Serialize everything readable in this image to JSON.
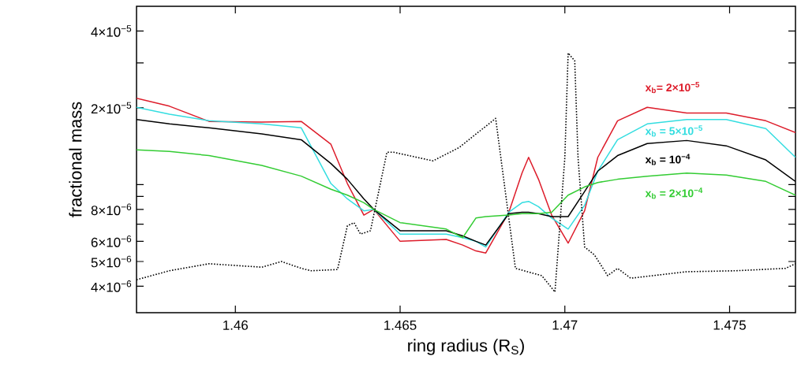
{
  "chart_data": {
    "type": "line",
    "xlabel": "ring radius (R$_{S}$)",
    "ylabel": "fractional mass",
    "log": true,
    "xlim": [
      1.457,
      1.477
    ],
    "ylim": [
      3.15e-06,
      5e-05
    ],
    "xticks": [
      1.46,
      1.465,
      1.47,
      1.475
    ],
    "yticks": [
      {
        "value": 4e-06,
        "label": "4×10$^{−6}$"
      },
      {
        "value": 5e-06,
        "label": "5×10$^{−6}$"
      },
      {
        "value": 6e-06,
        "label": "6×10$^{−6}$"
      },
      {
        "value": 7e-06,
        "label": null
      },
      {
        "value": 8e-06,
        "label": "8×10$^{−6}$"
      },
      {
        "value": 9e-06,
        "label": null
      },
      {
        "value": 1e-05,
        "label": null
      },
      {
        "value": 2e-05,
        "label": "2×10$^{−5}$"
      },
      {
        "value": 3e-05,
        "label": null
      },
      {
        "value": 4e-05,
        "label": "4×10$^{−5}$"
      }
    ],
    "x": [
      1.457,
      1.458,
      1.4592,
      1.4608,
      1.462,
      1.4629,
      1.4634,
      1.4639,
      1.4642,
      1.465,
      1.4664,
      1.4669,
      1.4673,
      1.4676,
      1.4683,
      1.4687,
      1.4689,
      1.4692,
      1.4696,
      1.4701,
      1.4706,
      1.471,
      1.4716,
      1.4725,
      1.4737,
      1.4749,
      1.4761,
      1.477
    ],
    "series": [
      {
        "name": "x$_{b}$= 2×10$^{−5}$",
        "color": "#dd1c2a",
        "values": [
          2.18e-05,
          2.03e-05,
          1.77e-05,
          1.76e-05,
          1.77e-05,
          1.44e-05,
          1.01e-05,
          7.6e-06,
          8e-06,
          6e-06,
          6.1e-06,
          5.8e-06,
          5.5e-06,
          5.4e-06,
          7.8e-06,
          1.11e-05,
          1.28e-05,
          1.05e-05,
          7.6e-06,
          5.9e-06,
          7.9e-06,
          1.28e-05,
          1.78e-05,
          2.01e-05,
          1.91e-05,
          1.91e-05,
          1.78e-05,
          1.6e-05
        ]
      },
      {
        "name": "x$_{b}$ = 5×10$^{−5}$",
        "color": "#33dde0",
        "values": [
          2.01e-05,
          1.89e-05,
          1.78e-05,
          1.73e-05,
          1.67e-05,
          1.01e-05,
          8.8e-06,
          7.9e-06,
          8e-06,
          6.4e-06,
          6.4e-06,
          6.2e-06,
          6e-06,
          5.7e-06,
          7.8e-06,
          8.5e-06,
          8.6e-06,
          8.2e-06,
          7.4e-06,
          6.7e-06,
          8.3e-06,
          1.13e-05,
          1.5e-05,
          1.73e-05,
          1.8e-05,
          1.8e-05,
          1.66e-05,
          1.28e-05
        ]
      },
      {
        "name": "x$_{b}$ = 10$^{−4}$",
        "color": "#000000",
        "values": [
          1.8e-05,
          1.73e-05,
          1.67e-05,
          1.58e-05,
          1.5e-05,
          1.21e-05,
          1.05e-05,
          8.8e-06,
          8e-06,
          6.6e-06,
          6.6e-06,
          6.3e-06,
          6e-06,
          5.8e-06,
          7.7e-06,
          7.8e-06,
          7.8e-06,
          7.7e-06,
          7.5e-06,
          7.5e-06,
          9.4e-06,
          1.13e-05,
          1.3e-05,
          1.45e-05,
          1.49e-05,
          1.42e-05,
          1.25e-05,
          1.03e-05
        ]
      },
      {
        "name": "x$_{b}$ = 2×10$^{−4}$",
        "color": "#33cc33",
        "values": [
          1.37e-05,
          1.35e-05,
          1.3e-05,
          1.19e-05,
          1.08e-05,
          9.6e-06,
          9.1e-06,
          8.5e-06,
          8e-06,
          7.1e-06,
          6.7e-06,
          6.2e-06,
          7.4e-06,
          7.5e-06,
          7.6e-06,
          7.7e-06,
          7.7e-06,
          7.7e-06,
          7.8e-06,
          9.1e-06,
          9.8e-06,
          1.02e-05,
          1.05e-05,
          1.08e-05,
          1.11e-05,
          1.09e-05,
          1.03e-05,
          9.1e-06
        ]
      },
      {
        "color": "#000000",
        "line_style": "dotted",
        "x": [
          1.457,
          1.458,
          1.4592,
          1.4608,
          1.4614,
          1.462,
          1.4623,
          1.4631,
          1.4634,
          1.4636,
          1.4638,
          1.4641,
          1.4646,
          1.4648,
          1.466,
          1.4668,
          1.4679,
          1.4685,
          1.4693,
          1.4697,
          1.47,
          1.4701,
          1.4703,
          1.4704,
          1.4706,
          1.4709,
          1.4713,
          1.4716,
          1.472,
          1.4737,
          1.4752,
          1.4767,
          1.477
        ],
        "values": [
          4.24e-06,
          4.6e-06,
          4.9e-06,
          4.75e-06,
          5e-06,
          4.7e-06,
          4.6e-06,
          4.65e-06,
          6.9e-06,
          7.1e-06,
          6.4e-06,
          6.6e-06,
          1.34e-05,
          1.34e-05,
          1.24e-05,
          1.4e-05,
          1.82e-05,
          4.7e-06,
          4.4e-06,
          3.8e-06,
          1.28e-05,
          3.28e-05,
          3.06e-05,
          1.28e-05,
          5.7e-06,
          5.3e-06,
          4.4e-06,
          4.7e-06,
          4.3e-06,
          4.56e-06,
          4.6e-06,
          4.7e-06,
          4.9e-06
        ]
      }
    ]
  }
}
